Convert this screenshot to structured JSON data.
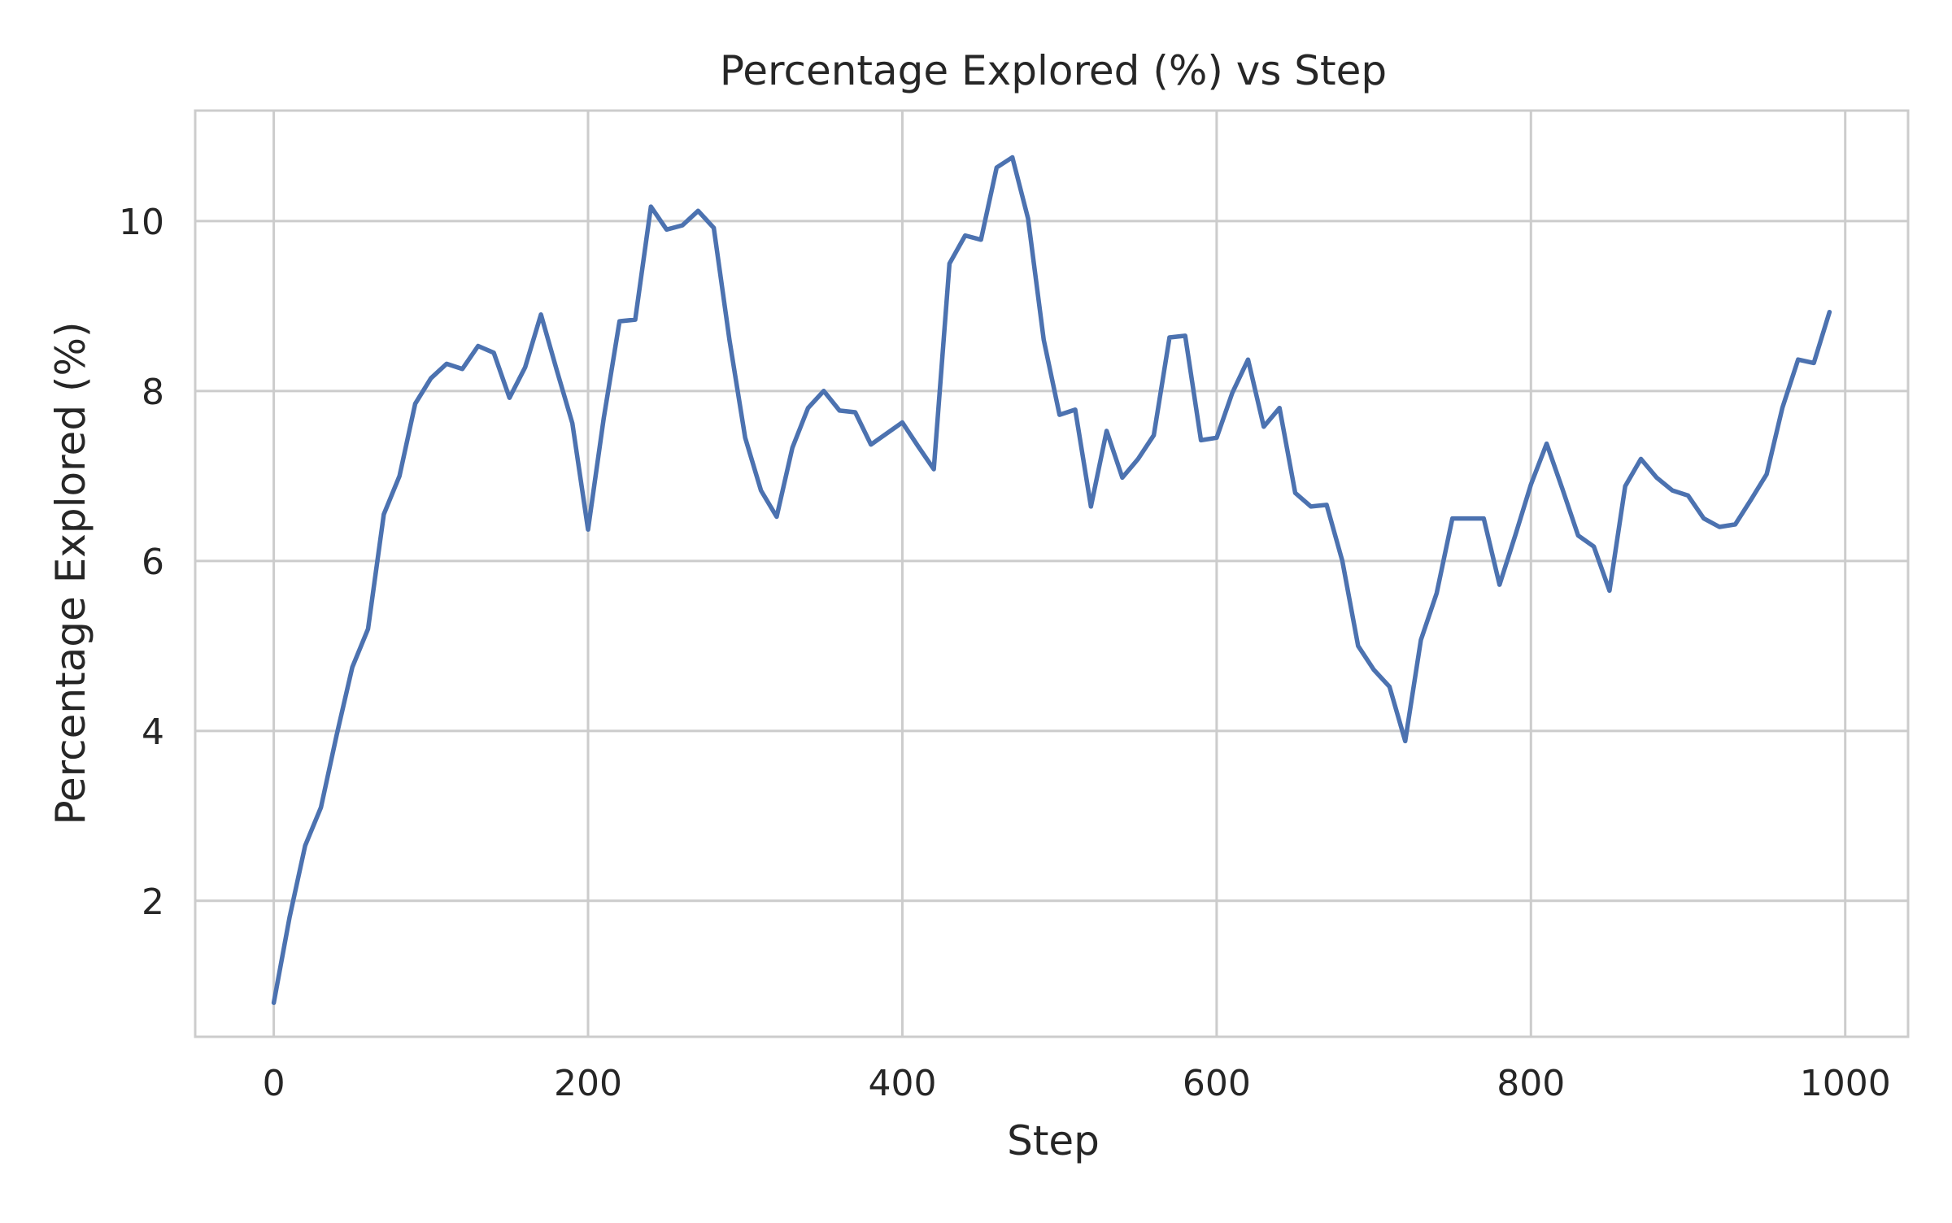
{
  "chart_data": {
    "type": "line",
    "title": "Percentage Explored (%) vs Step",
    "xlabel": "Step",
    "ylabel": "Percentage Explored (%)",
    "xlim": [
      -50,
      1040
    ],
    "ylim": [
      0.4,
      11.3
    ],
    "grid": true,
    "x_ticks": [
      0,
      200,
      400,
      600,
      800,
      1000
    ],
    "x_tick_labels": [
      "0",
      "200",
      "400",
      "600",
      "800",
      "1000"
    ],
    "y_ticks": [
      2,
      4,
      6,
      8,
      10
    ],
    "y_tick_labels": [
      "2",
      "4",
      "6",
      "8",
      "10"
    ],
    "series": [
      {
        "color": "#4c72b0",
        "x": [
          0,
          10,
          20,
          30,
          40,
          50,
          60,
          70,
          80,
          90,
          100,
          110,
          120,
          130,
          140,
          150,
          160,
          170,
          180,
          190,
          200,
          210,
          220,
          230,
          240,
          250,
          260,
          270,
          280,
          290,
          300,
          310,
          320,
          330,
          340,
          350,
          360,
          370,
          380,
          390,
          400,
          410,
          420,
          430,
          440,
          450,
          460,
          470,
          480,
          490,
          500,
          510,
          520,
          530,
          540,
          550,
          560,
          570,
          580,
          590,
          600,
          610,
          620,
          630,
          640,
          650,
          660,
          670,
          680,
          690,
          700,
          710,
          720,
          730,
          740,
          750,
          760,
          770,
          780,
          790,
          800,
          810,
          820,
          830,
          840,
          850,
          860,
          870,
          880,
          890,
          900,
          910,
          920,
          930,
          940,
          950,
          960,
          970,
          980,
          990
        ],
        "y": [
          0.8,
          1.8,
          2.65,
          3.1,
          3.95,
          4.75,
          5.2,
          6.55,
          7.0,
          7.85,
          8.15,
          8.32,
          8.26,
          8.53,
          8.45,
          7.92,
          8.28,
          8.9,
          8.25,
          7.62,
          6.37,
          7.68,
          8.82,
          8.84,
          10.17,
          9.9,
          9.95,
          10.12,
          9.92,
          8.6,
          7.45,
          6.83,
          6.52,
          7.33,
          7.8,
          8.0,
          7.77,
          7.75,
          7.37,
          7.5,
          7.63,
          7.35,
          7.08,
          9.5,
          9.83,
          9.78,
          10.63,
          10.75,
          10.03,
          8.6,
          7.72,
          7.78,
          6.64,
          7.53,
          6.98,
          7.2,
          7.48,
          8.63,
          8.65,
          7.42,
          7.45,
          7.98,
          8.37,
          7.58,
          7.8,
          6.8,
          6.64,
          6.66,
          6.0,
          5.0,
          4.72,
          4.52,
          3.88,
          5.07,
          5.62,
          6.5,
          6.5,
          6.5,
          5.72,
          6.3,
          6.9,
          7.38,
          6.85,
          6.3,
          6.17,
          5.65,
          6.88,
          7.2,
          6.98,
          6.83,
          6.77,
          6.5,
          6.4,
          6.43,
          6.72,
          7.02,
          7.8,
          8.37,
          8.33,
          8.93
        ]
      }
    ]
  }
}
